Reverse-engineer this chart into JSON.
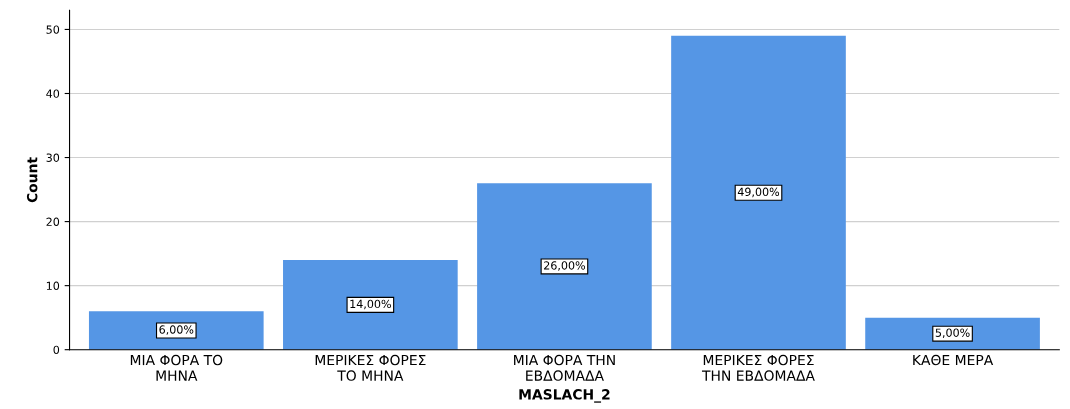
{
  "chart_data": {
    "type": "bar",
    "xlabel": "MASLACH_2",
    "ylabel": "Count",
    "categories": [
      "ΜΙΑ ΦΟΡΑ ΤΟ\nΜΗΝΑ",
      "ΜΕΡΙΚΕΣ ΦΟΡΕΣ\nΤΟ ΜΗΝΑ",
      "ΜΙΑ ΦΟΡΑ ΤΗΝ\nΕΒΔΟΜΑΔΑ",
      "ΜΕΡΙΚΕΣ ΦΟΡΕΣ\nΤΗΝ ΕΒΔΟΜΑΔΑ",
      "ΚΑΘΕ ΜΕΡΑ"
    ],
    "values": [
      6,
      14,
      26,
      49,
      5
    ],
    "value_labels": [
      "6,00%",
      "14,00%",
      "26,00%",
      "49,00%",
      "5,00%"
    ],
    "color": "#5596e5",
    "ylim": [
      0,
      53
    ],
    "yticks": [
      0,
      10,
      20,
      30,
      40,
      50
    ],
    "grid": "y"
  }
}
